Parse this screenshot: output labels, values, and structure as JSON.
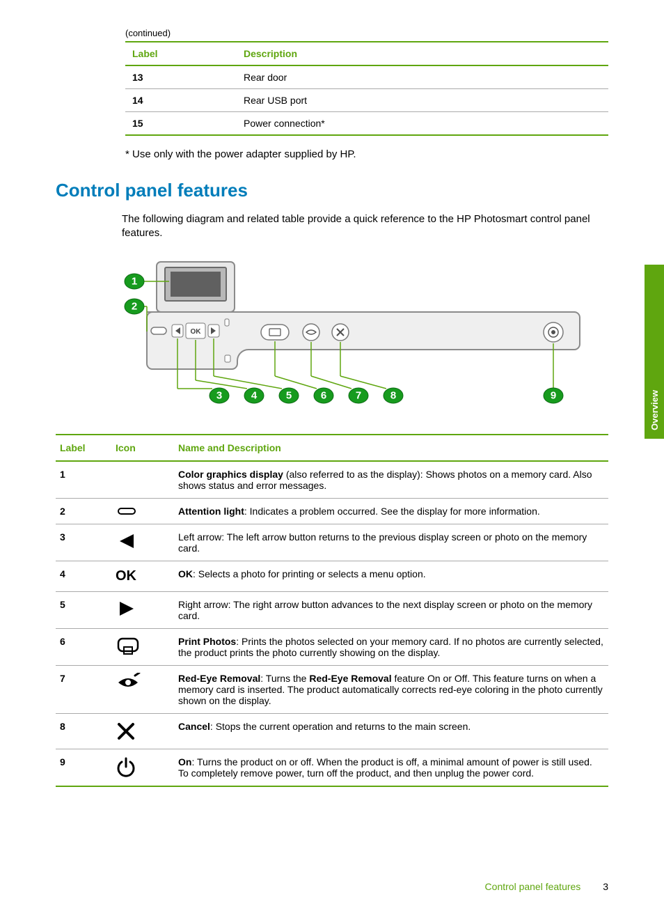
{
  "page": {
    "continued_label": "(continued)",
    "footnote": "* Use only with the power adapter supplied by HP.",
    "section_title": "Control panel features",
    "intro": "The following diagram and related table provide a quick reference to the HP Photosmart control panel features.",
    "side_tab": "Overview",
    "footer_text": "Control panel features",
    "page_number": "3"
  },
  "top_table": {
    "headers": {
      "label": "Label",
      "description": "Description"
    },
    "rows": [
      {
        "label": "13",
        "description": "Rear door"
      },
      {
        "label": "14",
        "description": "Rear USB port"
      },
      {
        "label": "15",
        "description": "Power connection*"
      }
    ]
  },
  "diagram": {
    "callouts": [
      "1",
      "2",
      "3",
      "4",
      "5",
      "6",
      "7",
      "8",
      "9"
    ],
    "panel_ok_label": "OK",
    "colors": {
      "badge_fill": "#179b1e",
      "badge_stroke": "#0d6b14",
      "leader_line": "#5fa60f",
      "panel_fill_light": "#f0f0f0",
      "panel_fill_mid": "#cfcfcf",
      "panel_stroke": "#8a8a8a",
      "screen_fill": "#606060",
      "button_stroke": "#606060"
    }
  },
  "features_table": {
    "headers": {
      "label": "Label",
      "icon": "Icon",
      "desc": "Name and Description"
    },
    "rows": [
      {
        "num": "1",
        "icon": "none",
        "bold": "Color graphics display",
        "rest": " (also referred to as the display): Shows photos on a memory card. Also shows status and error messages."
      },
      {
        "num": "2",
        "icon": "attention",
        "bold": "Attention light",
        "rest": ": Indicates a problem occurred. See the display for more information."
      },
      {
        "num": "3",
        "icon": "left-arrow",
        "bold": "",
        "rest": "Left arrow: The left arrow button returns to the previous display screen or photo on the memory card."
      },
      {
        "num": "4",
        "icon": "ok",
        "bold": "OK",
        "rest": ": Selects a photo for printing or selects a menu option."
      },
      {
        "num": "5",
        "icon": "right-arrow",
        "bold": "",
        "rest": "Right arrow: The right arrow button advances to the next display screen or photo on the memory card."
      },
      {
        "num": "6",
        "icon": "print-photos",
        "bold": "Print Photos",
        "rest": ": Prints the photos selected on your memory card. If no photos are currently selected, the product prints the photo currently showing on the display."
      },
      {
        "num": "7",
        "icon": "red-eye",
        "bold": "Red-Eye Removal",
        "rest_html": ": Turns the <b>Red-Eye Removal</b> feature On or Off. This feature turns on when a memory card is inserted. The product automatically corrects red-eye coloring in the photo currently shown on the display."
      },
      {
        "num": "8",
        "icon": "cancel",
        "bold": "Cancel",
        "rest": ": Stops the current operation and returns to the main screen."
      },
      {
        "num": "9",
        "icon": "power",
        "bold": "On",
        "rest": ": Turns the product on or off. When the product is off, a minimal amount of power is still used. To completely remove power, turn off the product, and then unplug the power cord."
      }
    ]
  },
  "styling": {
    "accent_green": "#5fa60f",
    "heading_blue": "#007dba",
    "text_color": "#000000",
    "page_bg": "#ffffff",
    "table_rule": "#aaaaaa",
    "icon_stroke": "#000000"
  }
}
